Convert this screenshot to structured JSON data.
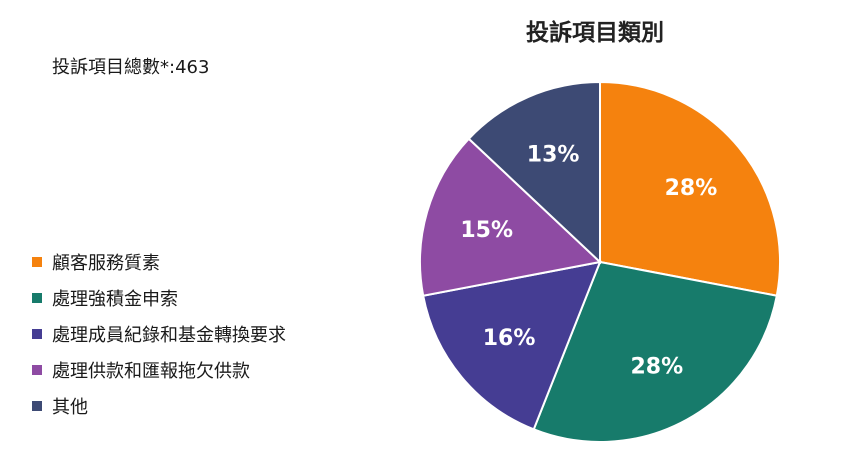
{
  "summary": {
    "total_text": "投訴項目總數*:463"
  },
  "chart_data": {
    "type": "pie",
    "title": "投訴項目類別",
    "legend_position": "left",
    "slices": [
      {
        "name": "顧客服務質素",
        "value": 28,
        "label": "28%",
        "color": "#F5820E"
      },
      {
        "name": "處理強積金申索",
        "value": 28,
        "label": "28%",
        "color": "#177B6B"
      },
      {
        "name": "處理成員紀錄和基金轉換要求",
        "value": 16,
        "label": "16%",
        "color": "#453D93"
      },
      {
        "name": "處理供款和匯報拖欠供款",
        "value": 15,
        "label": "15%",
        "color": "#8E4BA3"
      },
      {
        "name": "其他",
        "value": 13,
        "label": "13%",
        "color": "#3D4A74"
      }
    ]
  }
}
